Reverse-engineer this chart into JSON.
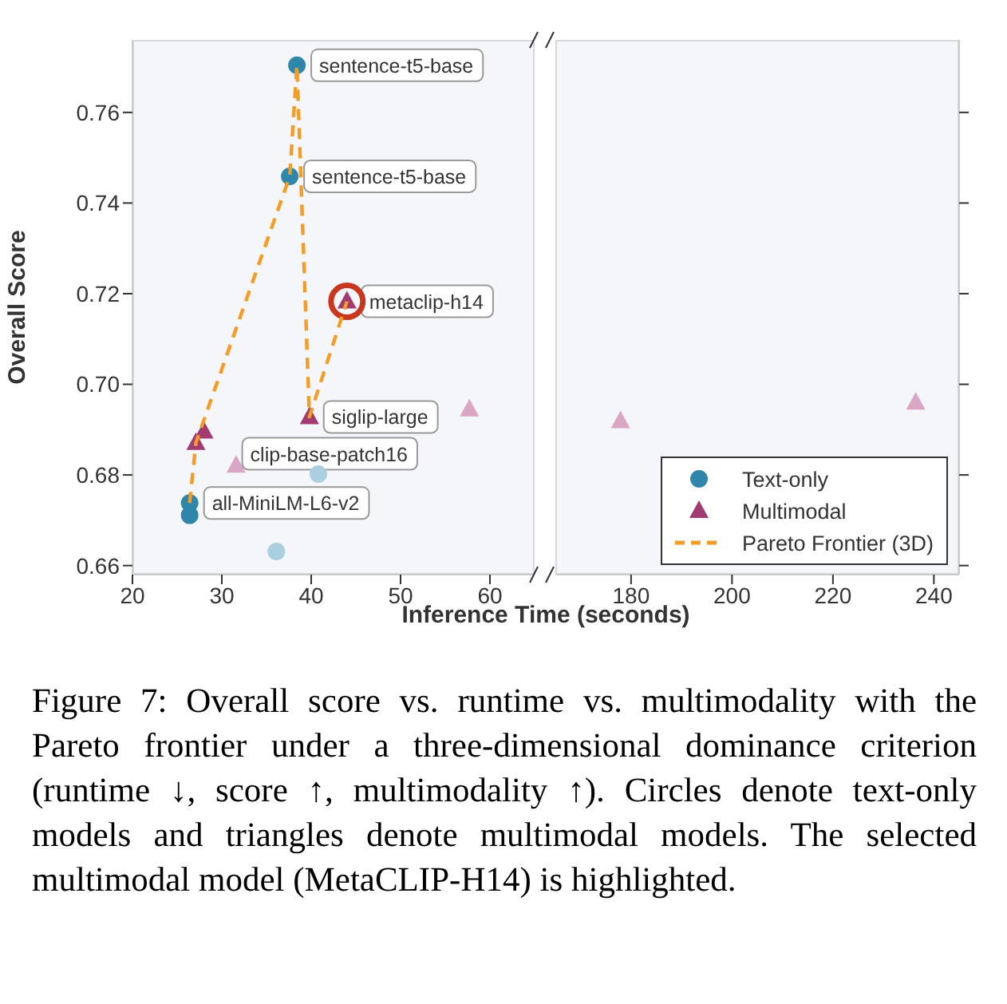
{
  "chart_data": [
    {
      "type": "scatter",
      "xlabel": "Inference Time (seconds)",
      "ylabel": "Overall Score",
      "xlim": [
        20,
        65
      ],
      "xticks": [
        20,
        30,
        40,
        50,
        60
      ],
      "ylim": [
        0.658,
        0.776
      ],
      "yticks": [
        0.66,
        0.68,
        {
          "value": 0.7,
          "label": "0.70"
        },
        0.72,
        0.74,
        0.76
      ],
      "legend": "bottom right",
      "series": [
        {
          "type": "scatter",
          "color": "#a9cfe0",
          "marker": "circle",
          "x": [
            40.8,
            36.1
          ],
          "values": [
            0.6802,
            0.6631
          ]
        },
        {
          "type": "scatter",
          "color": "#dba6c4",
          "marker": "triangle",
          "x": [
            31.6,
            57.7
          ],
          "values": [
            0.6821,
            0.6945
          ]
        },
        {
          "type": "bubble",
          "color": "#c8381e",
          "x": [
            44.0
          ],
          "values": [
            0.7183
          ],
          "sizes": [
            1
          ]
        },
        {
          "type": "scatter",
          "name": "Text-only",
          "color": "#2e86ab",
          "marker": "circle",
          "x": [
            38.4,
            37.6,
            26.4,
            26.4
          ],
          "values": [
            0.7704,
            0.7459,
            0.6738,
            0.6711
          ]
        },
        {
          "type": "scatter",
          "name": "Multimodal",
          "color": "#a23b72",
          "marker": "triangle",
          "x": [
            44.0,
            39.8,
            28.0,
            27.1
          ],
          "values": [
            0.7183,
            0.6928,
            0.6896,
            0.6871
          ]
        },
        {
          "type": "line",
          "name": "Pareto Frontier (3D)",
          "color": "#f39c26",
          "line_style": "dashed",
          "marker": "none",
          "x": [
            26.4,
            27.1,
            37.6,
            38.4,
            39.8,
            44.0
          ],
          "values": [
            0.6738,
            0.6871,
            0.7459,
            0.7704,
            0.6928,
            0.7183
          ]
        }
      ],
      "annotations": [
        {
          "text": "sentence-t5-base",
          "x": 38.4,
          "y": 0.7704
        },
        {
          "text": "sentence-t5-base",
          "x": 37.6,
          "y": 0.7459
        },
        {
          "text": "metaclip-h14",
          "x": 44.0,
          "y": 0.7183
        },
        {
          "text": "siglip-large",
          "x": 39.8,
          "y": 0.6928
        },
        {
          "text": "clip-base-patch16",
          "x": 28.0,
          "y": 0.6896
        },
        {
          "text": "all-MiniLM-L6-v2",
          "x": 26.4,
          "y": 0.6738
        },
        "Figure 7:  Overall score vs. runtime vs. multimodality with the Pareto frontier under a three-dimensional dominance criterion (runtime ↓, score ↑, multimodality ↑). Circles denote text-only models and triangles denote multimodal models. The selected multimodal model (MetaCLIP-H14) is highlighted."
      ]
    },
    {
      "type": "scatter",
      "xlim": [
        165,
        245
      ],
      "xticks": [
        180,
        200,
        220,
        240
      ],
      "ylim": [
        0.658,
        0.776
      ],
      "yticks": [
        0.66,
        0.68,
        0.7,
        0.72,
        0.74,
        0.76
      ],
      "tick_labels": "x",
      "series": [
        {
          "type": "scatter",
          "color": "#dba6c4",
          "marker": "triangle",
          "x": [
            177.9,
            236.4
          ],
          "values": [
            0.6919,
            0.696
          ]
        }
      ]
    }
  ]
}
